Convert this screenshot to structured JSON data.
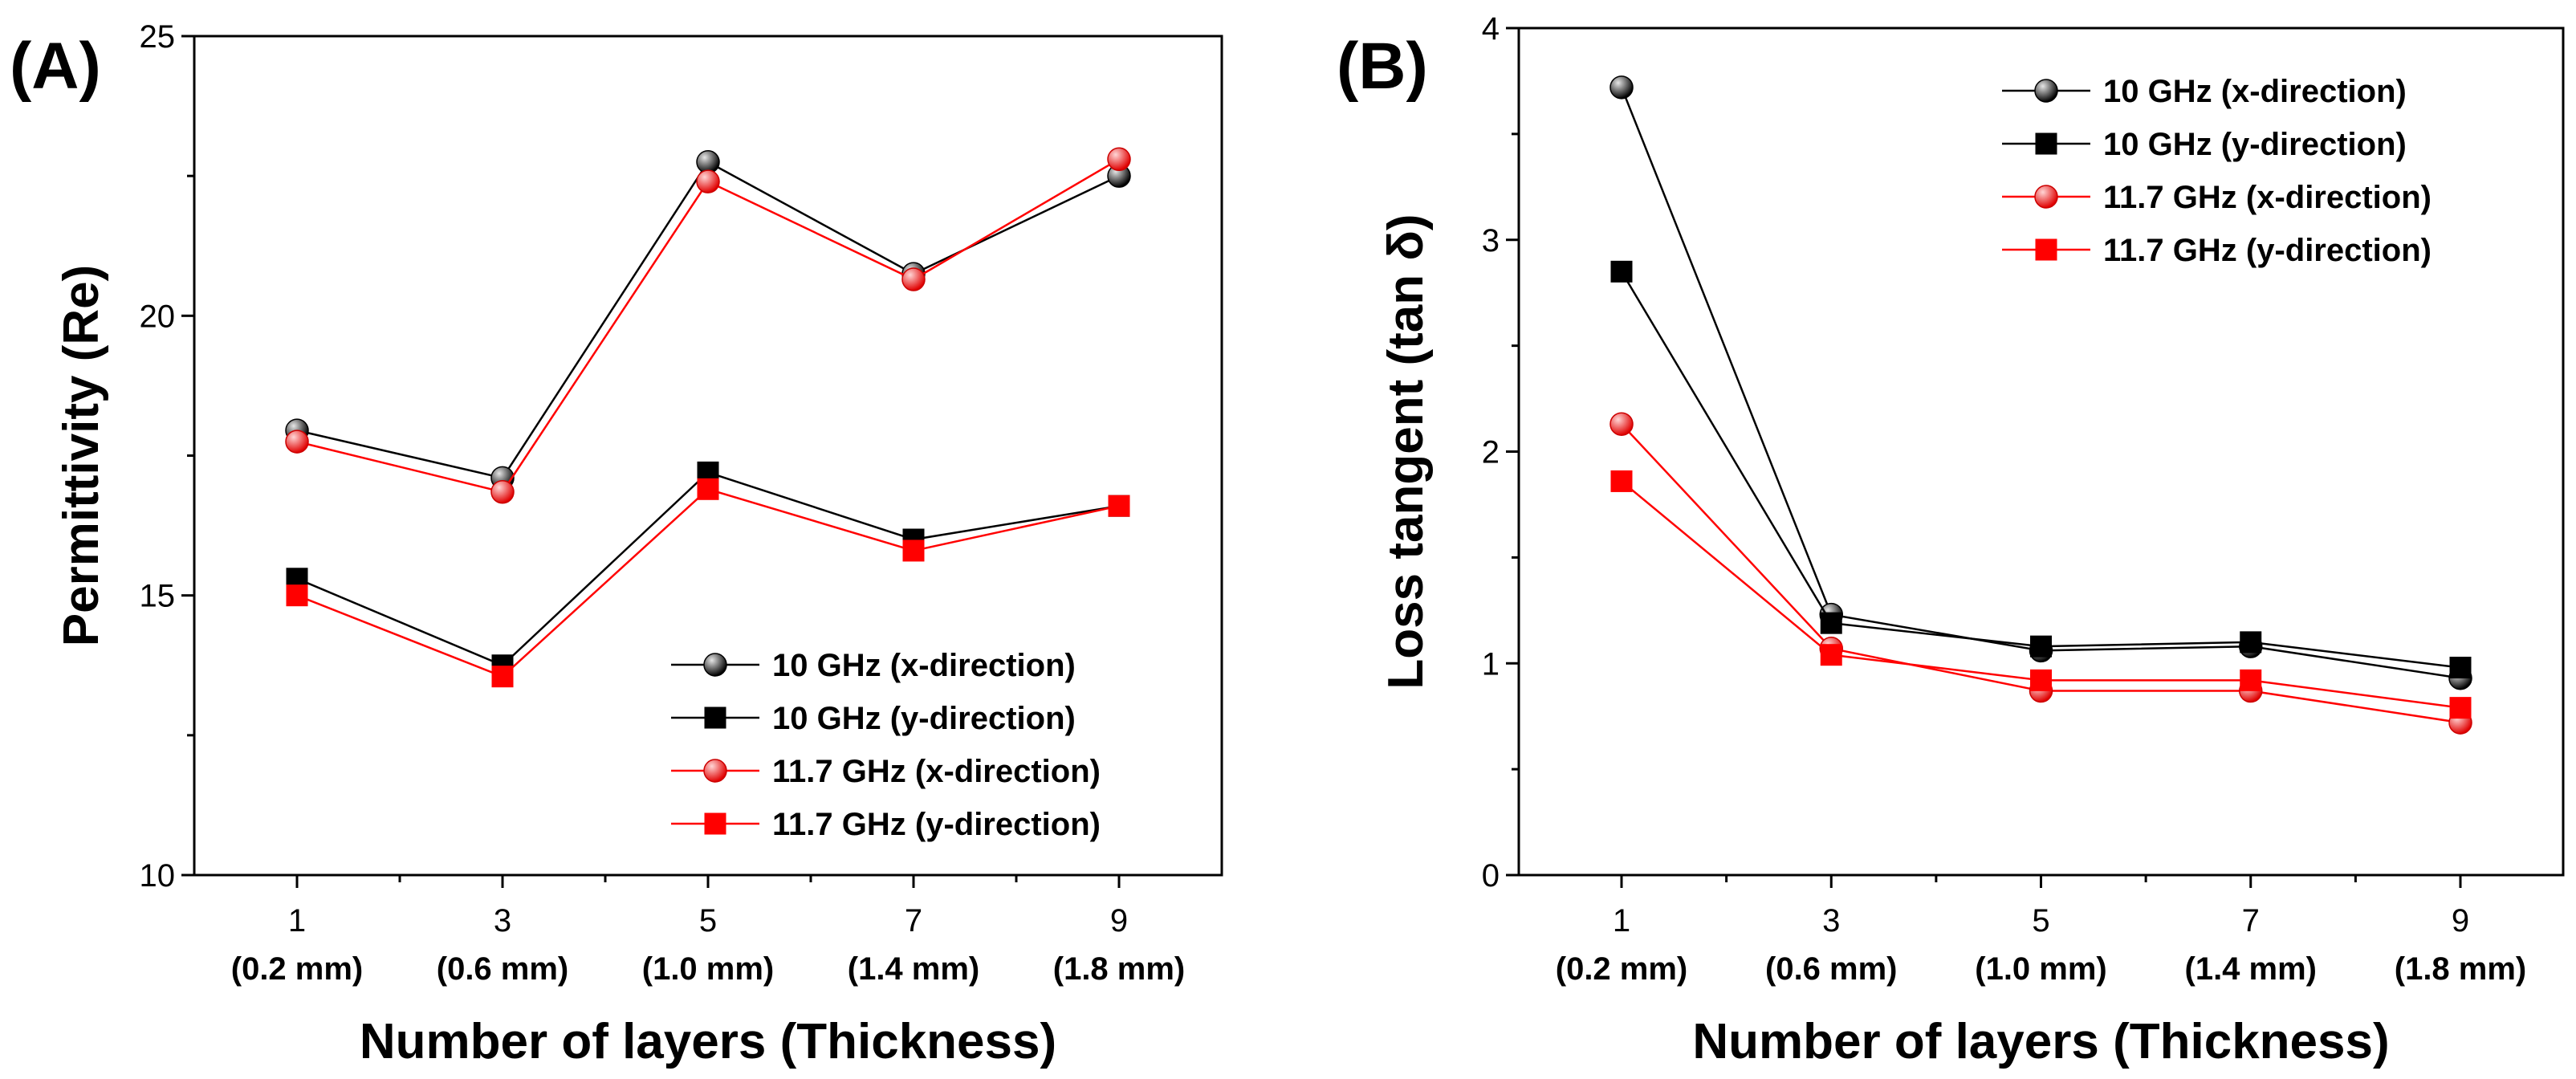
{
  "chart_data": [
    {
      "type": "line",
      "panel_label": "(A)",
      "title": "",
      "xlabel": "Number of layers (Thickness)",
      "ylabel": "Permittivity (Re)",
      "categories": [
        "1",
        "3",
        "5",
        "7",
        "9"
      ],
      "category_sublabels": [
        "(0.2 mm)",
        "(0.6 mm)",
        "(1.0 mm)",
        "(1.4 mm)",
        "(1.8 mm)"
      ],
      "ylim": [
        10,
        25
      ],
      "yticks": [
        "10",
        "15",
        "20",
        "25"
      ],
      "legend_position": "bottom-right",
      "series": [
        {
          "name": "10 GHz (x-direction)",
          "color": "#000000",
          "marker": "circle",
          "values": [
            17.95,
            17.1,
            22.75,
            20.75,
            22.5
          ]
        },
        {
          "name": "10 GHz (y-direction)",
          "color": "#000000",
          "marker": "square",
          "values": [
            15.3,
            13.75,
            17.2,
            16.0,
            16.6
          ]
        },
        {
          "name": "11.7 GHz (x-direction)",
          "color": "#ff0000",
          "marker": "circle",
          "values": [
            17.75,
            16.85,
            22.4,
            20.65,
            22.8
          ]
        },
        {
          "name": "11.7 GHz (y-direction)",
          "color": "#ff0000",
          "marker": "square",
          "values": [
            15.0,
            13.55,
            16.9,
            15.8,
            16.6
          ]
        }
      ]
    },
    {
      "type": "line",
      "panel_label": "(B)",
      "title": "",
      "xlabel": "Number of layers (Thickness)",
      "ylabel": "Loss tangent (tan δ)",
      "categories": [
        "1",
        "3",
        "5",
        "7",
        "9"
      ],
      "category_sublabels": [
        "(0.2 mm)",
        "(0.6 mm)",
        "(1.0 mm)",
        "(1.4 mm)",
        "(1.8 mm)"
      ],
      "ylim": [
        0,
        4
      ],
      "yticks": [
        "0",
        "1",
        "2",
        "3",
        "4"
      ],
      "legend_position": "top-right",
      "series": [
        {
          "name": "10 GHz (x-direction)",
          "color": "#000000",
          "marker": "circle",
          "values": [
            3.72,
            1.23,
            1.06,
            1.08,
            0.93
          ]
        },
        {
          "name": "10 GHz (y-direction)",
          "color": "#000000",
          "marker": "square",
          "values": [
            2.85,
            1.19,
            1.08,
            1.1,
            0.98
          ]
        },
        {
          "name": "11.7 GHz (x-direction)",
          "color": "#ff0000",
          "marker": "circle",
          "values": [
            2.13,
            1.07,
            0.87,
            0.87,
            0.72
          ]
        },
        {
          "name": "11.7 GHz (y-direction)",
          "color": "#ff0000",
          "marker": "square",
          "values": [
            1.86,
            1.04,
            0.92,
            0.92,
            0.79
          ]
        }
      ]
    }
  ]
}
